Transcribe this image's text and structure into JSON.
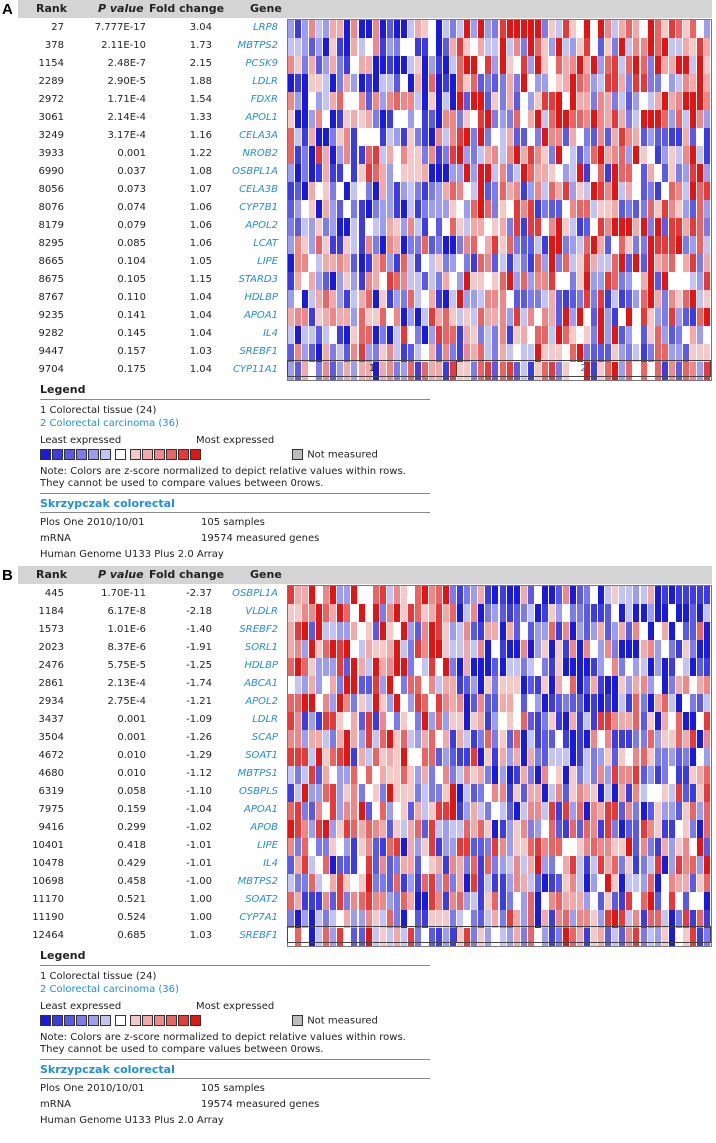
{
  "panels": [
    {
      "letter": "A",
      "headers": {
        "rank": "Rank",
        "p": "P value",
        "fc": "Fold change",
        "gene": "Gene"
      },
      "rows": [
        {
          "rank": "27",
          "p": "7.777E-17",
          "fc": "3.04",
          "gene": "LRP8"
        },
        {
          "rank": "378",
          "p": "2.11E-10",
          "fc": "1.73",
          "gene": "MBTPS2"
        },
        {
          "rank": "1154",
          "p": "2.48E-7",
          "fc": "2.15",
          "gene": "PCSK9"
        },
        {
          "rank": "2289",
          "p": "2.90E-5",
          "fc": "1.88",
          "gene": "LDLR"
        },
        {
          "rank": "2972",
          "p": "1.71E-4",
          "fc": "1.54",
          "gene": "FDXR"
        },
        {
          "rank": "3061",
          "p": "2.14E-4",
          "fc": "1.33",
          "gene": "APOL1"
        },
        {
          "rank": "3249",
          "p": "3.17E-4",
          "fc": "1.16",
          "gene": "CELA3A"
        },
        {
          "rank": "3933",
          "p": "0.001",
          "fc": "1.22",
          "gene": "NROB2"
        },
        {
          "rank": "6990",
          "p": "0.037",
          "fc": "1.08",
          "gene": "OSBPL1A"
        },
        {
          "rank": "8056",
          "p": "0.073",
          "fc": "1.07",
          "gene": "CELA3B"
        },
        {
          "rank": "8076",
          "p": "0.074",
          "fc": "1.06",
          "gene": "CYP7B1"
        },
        {
          "rank": "8179",
          "p": "0.079",
          "fc": "1.06",
          "gene": "APOL2"
        },
        {
          "rank": "8295",
          "p": "0.085",
          "fc": "1.06",
          "gene": "LCAT"
        },
        {
          "rank": "8665",
          "p": "0.104",
          "fc": "1.05",
          "gene": "LIPE"
        },
        {
          "rank": "8675",
          "p": "0.105",
          "fc": "1.15",
          "gene": "STARD3"
        },
        {
          "rank": "8767",
          "p": "0.110",
          "fc": "1.04",
          "gene": "HDLBP"
        },
        {
          "rank": "9235",
          "p": "0.141",
          "fc": "1.04",
          "gene": "APOA1"
        },
        {
          "rank": "9282",
          "p": "0.145",
          "fc": "1.04",
          "gene": "IL4"
        },
        {
          "rank": "9447",
          "p": "0.157",
          "fc": "1.03",
          "gene": "SREBF1"
        },
        {
          "rank": "9704",
          "p": "0.175",
          "fc": "1.04",
          "gene": "CYP11A1"
        }
      ],
      "groups": [
        "1",
        "2"
      ]
    },
    {
      "letter": "B",
      "headers": {
        "rank": "Rank",
        "p": "P value",
        "fc": "Fold change",
        "gene": "Gene"
      },
      "rows": [
        {
          "rank": "445",
          "p": "1.70E-11",
          "fc": "-2.37",
          "gene": "OSBPL1A"
        },
        {
          "rank": "1184",
          "p": "6.17E-8",
          "fc": "-2.18",
          "gene": "VLDLR"
        },
        {
          "rank": "1573",
          "p": "1.01E-6",
          "fc": "-1.40",
          "gene": "SREBF2"
        },
        {
          "rank": "2023",
          "p": "8.37E-6",
          "fc": "-1.91",
          "gene": "SORL1"
        },
        {
          "rank": "2476",
          "p": "5.75E-5",
          "fc": "-1.25",
          "gene": "HDLBP"
        },
        {
          "rank": "2861",
          "p": "2.13E-4",
          "fc": "-1.74",
          "gene": "ABCA1"
        },
        {
          "rank": "2934",
          "p": "2.75E-4",
          "fc": "-1.21",
          "gene": "APOL2"
        },
        {
          "rank": "3437",
          "p": "0.001",
          "fc": "-1.09",
          "gene": "LDLR"
        },
        {
          "rank": "3504",
          "p": "0.001",
          "fc": "-1.26",
          "gene": "SCAP"
        },
        {
          "rank": "4672",
          "p": "0.010",
          "fc": "-1.29",
          "gene": "SOAT1"
        },
        {
          "rank": "4680",
          "p": "0.010",
          "fc": "-1.12",
          "gene": "MBTPS1"
        },
        {
          "rank": "6319",
          "p": "0.058",
          "fc": "-1.10",
          "gene": "OSBPLS"
        },
        {
          "rank": "7975",
          "p": "0.159",
          "fc": "-1.04",
          "gene": "APOA1"
        },
        {
          "rank": "9416",
          "p": "0.299",
          "fc": "-1.02",
          "gene": "APOB"
        },
        {
          "rank": "10401",
          "p": "0.418",
          "fc": "-1.01",
          "gene": "LIPE"
        },
        {
          "rank": "10478",
          "p": "0.429",
          "fc": "-1.01",
          "gene": "IL4"
        },
        {
          "rank": "10698",
          "p": "0.458",
          "fc": "-1.00",
          "gene": "MBTPS2"
        },
        {
          "rank": "11170",
          "p": "0.521",
          "fc": "1.00",
          "gene": "SOAT2"
        },
        {
          "rank": "11190",
          "p": "0.524",
          "fc": "1.00",
          "gene": "CYP7A1"
        },
        {
          "rank": "12464",
          "p": "0.685",
          "fc": "1.03",
          "gene": "SREBF1"
        }
      ],
      "groups": [
        "",
        ""
      ]
    }
  ],
  "legend": {
    "title": "Legend",
    "group1": "1 Colorectal tissue (24)",
    "group2": "2 Colorectal carcinoma (36)",
    "least": "Least expressed",
    "most": "Most expressed",
    "not_measured": "Not measured",
    "note": "Note: Colors are z-score normalized to depict relative values within rows. They cannot be used to compare values between 0rows.",
    "dataset": "Skrzypczak colorectal",
    "journal": "Plos One 2010/10/01",
    "samples": "105 samples",
    "mrna": "mRNA",
    "measured": "19574 measured genes",
    "platform": "Human Genome U133 Plus 2.0 Array"
  },
  "colors": {
    "scale": [
      "#1a1adb",
      "#3c3ce0",
      "#5a5ae4",
      "#7b7be9",
      "#9d9def",
      "#c3c3f4",
      "#ffffff",
      "#f6c9c9",
      "#f2a9a9",
      "#ee8888",
      "#ea6464",
      "#e63a3a",
      "#e21515"
    ],
    "not_measured": "#bdbdbd",
    "header_bg": "#d4d4d4",
    "link_blue": "#1f8fd8"
  },
  "chart_data": [
    {
      "type": "heatmap",
      "title": "",
      "group_sizes": [
        24,
        36
      ],
      "rows": [
        "LRP8",
        "MBTPS2",
        "PCSK9",
        "LDLR",
        "FDXR",
        "APOL1",
        "CELA3A",
        "NROB2",
        "OSBPL1A",
        "CELA3B",
        "CYP7B1",
        "APOL2",
        "LCAT",
        "LIPE",
        "STARD3",
        "HDLBP",
        "APOA1",
        "IL4",
        "SREBF1",
        "CYP11A1"
      ],
      "bias": [
        3,
        2,
        3,
        2,
        2,
        2,
        1,
        1,
        1,
        1,
        1,
        1,
        1,
        1,
        1,
        1,
        1,
        1,
        1,
        1
      ]
    },
    {
      "type": "heatmap",
      "title": "",
      "group_sizes": [
        24,
        36
      ],
      "rows": [
        "OSBPL1A",
        "VLDLR",
        "SREBF2",
        "SORL1",
        "HDLBP",
        "ABCA1",
        "APOL2",
        "LDLR",
        "SCAP",
        "SOAT1",
        "MBTPS1",
        "OSBPLS",
        "APOA1",
        "APOB",
        "LIPE",
        "IL4",
        "MBTPS2",
        "SOAT2",
        "CYP7A1",
        "SREBF1"
      ],
      "bias": [
        3,
        3,
        2,
        3,
        2,
        2,
        2,
        1,
        1,
        1,
        1,
        1,
        1,
        1,
        0,
        0,
        0,
        0,
        0,
        0
      ]
    }
  ]
}
